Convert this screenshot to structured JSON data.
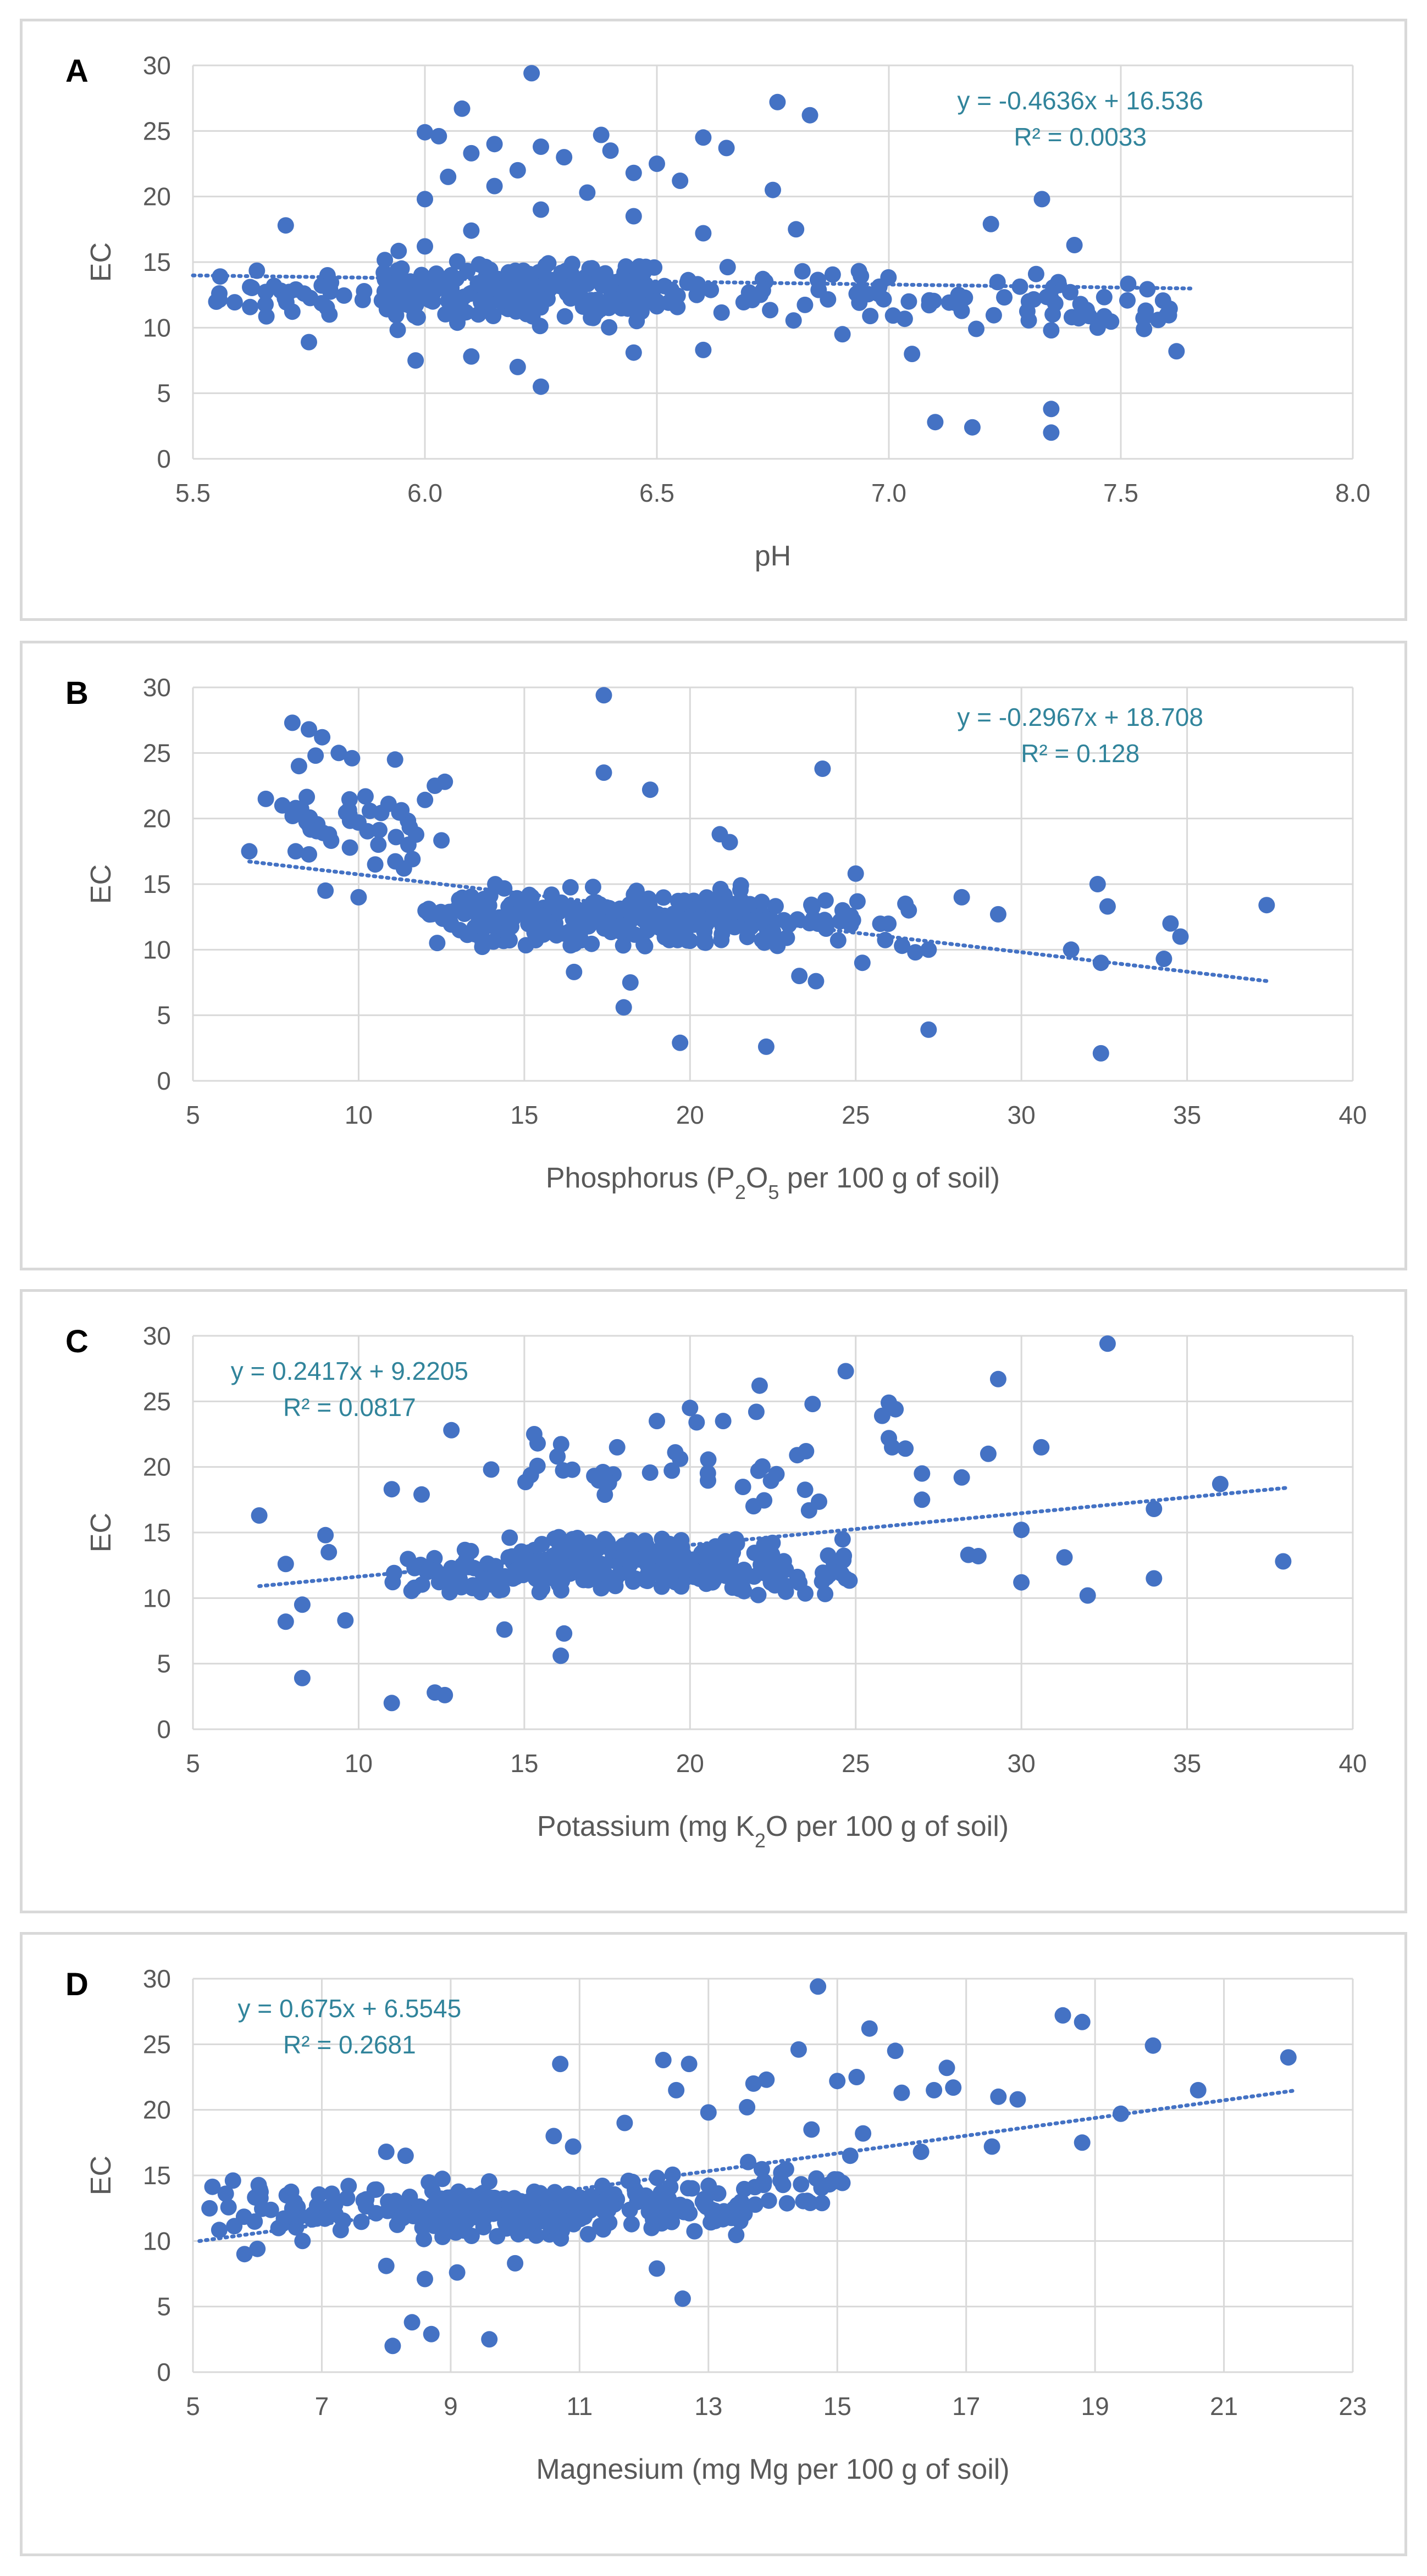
{
  "colors": {
    "marker": "#4472c4",
    "trend": "#4472c4",
    "equation": "#31849b",
    "grid": "#d9d9d9",
    "tick": "#595959",
    "border": "#d9d9d9"
  },
  "chart_data": [
    {
      "panel_label": "A",
      "type": "scatter",
      "xlabel": "pH",
      "xlabel_parts": [
        {
          "t": "pH"
        }
      ],
      "ylabel": "EC",
      "xlim": [
        5.5,
        8.0
      ],
      "ylim": [
        0,
        30
      ],
      "xticks": [
        5.5,
        6.0,
        6.5,
        7.0,
        7.5,
        8.0
      ],
      "xtick_labels": [
        "5.5",
        "6.0",
        "6.5",
        "7.0",
        "7.5",
        "8.0"
      ],
      "yticks": [
        0,
        5,
        10,
        15,
        20,
        25,
        30
      ],
      "ytick_labels": [
        "0",
        "5",
        "10",
        "15",
        "20",
        "25",
        "30"
      ],
      "equation": "y = -0.4636x + 16.536",
      "r2": "R² = 0.0033",
      "eq_side": "right",
      "trend": {
        "slope": -0.4636,
        "intercept": 16.536,
        "x0": 5.5,
        "x1": 7.65
      },
      "clusters": [
        {
          "x": [
            5.9,
            6.5
          ],
          "y": [
            9.5,
            16
          ],
          "n": 210,
          "seed": 11
        },
        {
          "x": [
            5.55,
            6.0
          ],
          "y": [
            10,
            15
          ],
          "n": 45,
          "seed": 12
        },
        {
          "x": [
            6.4,
            7.0
          ],
          "y": [
            10,
            15.5
          ],
          "n": 45,
          "seed": 13
        },
        {
          "x": [
            7.0,
            7.65
          ],
          "y": [
            9,
            15
          ],
          "n": 45,
          "seed": 14
        }
      ],
      "points": [
        [
          6.23,
          29.4
        ],
        [
          6.76,
          27.2
        ],
        [
          6.08,
          26.7
        ],
        [
          6.83,
          26.2
        ],
        [
          6.0,
          24.9
        ],
        [
          6.03,
          24.6
        ],
        [
          6.38,
          24.7
        ],
        [
          6.6,
          24.5
        ],
        [
          6.15,
          24.0
        ],
        [
          6.25,
          23.8
        ],
        [
          6.4,
          23.5
        ],
        [
          6.65,
          23.7
        ],
        [
          6.1,
          23.3
        ],
        [
          6.3,
          23.0
        ],
        [
          6.5,
          22.5
        ],
        [
          6.2,
          22.0
        ],
        [
          6.45,
          21.8
        ],
        [
          6.55,
          21.2
        ],
        [
          6.05,
          21.5
        ],
        [
          6.15,
          20.8
        ],
        [
          6.75,
          20.5
        ],
        [
          6.35,
          20.3
        ],
        [
          7.33,
          19.8
        ],
        [
          6.0,
          19.8
        ],
        [
          6.25,
          19.0
        ],
        [
          6.45,
          18.5
        ],
        [
          5.7,
          17.8
        ],
        [
          7.22,
          17.9
        ],
        [
          6.1,
          17.4
        ],
        [
          6.8,
          17.5
        ],
        [
          6.6,
          17.2
        ],
        [
          7.4,
          16.3
        ],
        [
          6.0,
          16.2
        ],
        [
          7.1,
          2.8
        ],
        [
          7.18,
          2.4
        ],
        [
          7.35,
          2.0
        ],
        [
          7.35,
          3.8
        ],
        [
          6.25,
          5.5
        ],
        [
          5.98,
          7.5
        ],
        [
          6.2,
          7.0
        ],
        [
          6.45,
          8.1
        ],
        [
          6.6,
          8.3
        ],
        [
          6.1,
          7.8
        ],
        [
          5.75,
          8.9
        ],
        [
          7.35,
          9.8
        ],
        [
          7.45,
          10.0
        ],
        [
          7.55,
          9.9
        ],
        [
          7.62,
          8.2
        ],
        [
          7.6,
          11.0
        ],
        [
          7.05,
          8.0
        ],
        [
          6.9,
          9.5
        ],
        [
          7.15,
          12.5
        ]
      ]
    },
    {
      "panel_label": "B",
      "type": "scatter",
      "xlabel": "Phosphorus (P2O5 per 100 g of soil)",
      "xlabel_parts": [
        {
          "t": "Phosphorus (P"
        },
        {
          "t": "2",
          "sub": true
        },
        {
          "t": "O"
        },
        {
          "t": "5",
          "sub": true
        },
        {
          "t": " per 100 g of soil)"
        }
      ],
      "ylabel": "EC",
      "xlim": [
        5,
        40
      ],
      "ylim": [
        0,
        30
      ],
      "xticks": [
        5,
        10,
        15,
        20,
        25,
        30,
        35,
        40
      ],
      "xtick_labels": [
        "5",
        "10",
        "15",
        "20",
        "25",
        "30",
        "35",
        "40"
      ],
      "yticks": [
        0,
        5,
        10,
        15,
        20,
        25,
        30
      ],
      "ytick_labels": [
        "0",
        "5",
        "10",
        "15",
        "20",
        "25",
        "30"
      ],
      "equation": "y = -0.2967x + 18.708",
      "r2": "R² = 0.128",
      "eq_side": "right",
      "trend": {
        "slope": -0.2967,
        "intercept": 18.708,
        "x0": 6.7,
        "x1": 37.5
      },
      "clusters": [
        {
          "x": [
            13.5,
            22
          ],
          "y": [
            9.5,
            15.5
          ],
          "n": 240,
          "seed": 21
        },
        {
          "x": [
            12,
            14
          ],
          "y": [
            10,
            15
          ],
          "n": 30,
          "seed": 22
        },
        {
          "x": [
            22,
            26
          ],
          "y": [
            9,
            15
          ],
          "n": 35,
          "seed": 23
        },
        {
          "x": [
            8,
            12.5
          ],
          "y": [
            15,
            24
          ],
          "n": 40,
          "seed": 24
        }
      ],
      "points": [
        [
          8.0,
          27.3
        ],
        [
          8.5,
          26.8
        ],
        [
          8.9,
          26.2
        ],
        [
          8.2,
          24.0
        ],
        [
          8.7,
          24.8
        ],
        [
          9.4,
          25.0
        ],
        [
          9.8,
          24.6
        ],
        [
          11.1,
          24.5
        ],
        [
          17.4,
          29.4
        ],
        [
          17.4,
          23.5
        ],
        [
          18.8,
          22.2
        ],
        [
          24.0,
          23.8
        ],
        [
          12.3,
          22.5
        ],
        [
          12.6,
          22.8
        ],
        [
          7.2,
          21.5
        ],
        [
          7.7,
          21.0
        ],
        [
          8.1,
          20.8
        ],
        [
          6.7,
          17.5
        ],
        [
          8.1,
          17.5
        ],
        [
          11.5,
          18.0
        ],
        [
          10.5,
          16.5
        ],
        [
          9.0,
          14.5
        ],
        [
          10.0,
          14.0
        ],
        [
          20.9,
          18.8
        ],
        [
          21.2,
          18.2
        ],
        [
          26.5,
          13.5
        ],
        [
          26.6,
          13.0
        ],
        [
          26.8,
          9.8
        ],
        [
          27.2,
          10.0
        ],
        [
          28.2,
          14.0
        ],
        [
          29.3,
          12.7
        ],
        [
          31.5,
          10.0
        ],
        [
          32.3,
          15.0
        ],
        [
          32.4,
          9.0
        ],
        [
          32.6,
          13.3
        ],
        [
          34.5,
          12.0
        ],
        [
          34.8,
          11.0
        ],
        [
          34.3,
          9.3
        ],
        [
          37.4,
          13.4
        ],
        [
          32.4,
          2.1
        ],
        [
          27.2,
          3.9
        ],
        [
          22.3,
          2.6
        ],
        [
          19.7,
          2.9
        ],
        [
          18.0,
          5.6
        ],
        [
          18.2,
          7.5
        ],
        [
          16.5,
          8.3
        ],
        [
          23.3,
          8.0
        ],
        [
          25.2,
          9.0
        ],
        [
          23.8,
          7.6
        ],
        [
          26.4,
          10.3
        ],
        [
          25.0,
          15.8
        ]
      ]
    },
    {
      "panel_label": "C",
      "type": "scatter",
      "xlabel": "Potassium (mg K2O per 100 g of soil)",
      "xlabel_parts": [
        {
          "t": "Potassium (mg K"
        },
        {
          "t": "2",
          "sub": true
        },
        {
          "t": "O per 100 g of soil)"
        }
      ],
      "ylabel": "EC",
      "xlim": [
        5,
        40
      ],
      "ylim": [
        0,
        30
      ],
      "xticks": [
        5,
        10,
        15,
        20,
        25,
        30,
        35,
        40
      ],
      "xtick_labels": [
        "5",
        "10",
        "15",
        "20",
        "25",
        "30",
        "35",
        "40"
      ],
      "yticks": [
        0,
        5,
        10,
        15,
        20,
        25,
        30
      ],
      "ytick_labels": [
        "0",
        "5",
        "10",
        "15",
        "20",
        "25",
        "30"
      ],
      "equation": "y = 0.2417x + 9.2205",
      "r2": "R² = 0.0817",
      "eq_side": "left",
      "trend": {
        "slope": 0.2417,
        "intercept": 9.2205,
        "x0": 7.0,
        "x1": 38.0
      },
      "clusters": [
        {
          "x": [
            14.5,
            21.5
          ],
          "y": [
            10,
            15.5
          ],
          "n": 240,
          "seed": 31
        },
        {
          "x": [
            11,
            14.5
          ],
          "y": [
            9,
            15
          ],
          "n": 45,
          "seed": 32
        },
        {
          "x": [
            21.5,
            25
          ],
          "y": [
            9,
            15.5
          ],
          "n": 45,
          "seed": 33
        },
        {
          "x": [
            15,
            24
          ],
          "y": [
            15.5,
            23
          ],
          "n": 30,
          "seed": 34
        }
      ],
      "points": [
        [
          32.6,
          29.4
        ],
        [
          24.7,
          27.3
        ],
        [
          29.3,
          26.7
        ],
        [
          22.1,
          26.2
        ],
        [
          26.0,
          24.9
        ],
        [
          26.2,
          24.4
        ],
        [
          25.8,
          23.9
        ],
        [
          22.0,
          24.2
        ],
        [
          23.7,
          24.8
        ],
        [
          20.0,
          24.5
        ],
        [
          19.0,
          23.5
        ],
        [
          20.2,
          23.4
        ],
        [
          21.0,
          23.5
        ],
        [
          12.8,
          22.8
        ],
        [
          15.3,
          22.5
        ],
        [
          15.4,
          21.8
        ],
        [
          17.8,
          21.5
        ],
        [
          26.0,
          22.2
        ],
        [
          26.1,
          21.5
        ],
        [
          26.5,
          21.4
        ],
        [
          23.5,
          21.2
        ],
        [
          30.6,
          21.5
        ],
        [
          29.0,
          21.0
        ],
        [
          16.0,
          20.8
        ],
        [
          14.0,
          19.8
        ],
        [
          27.0,
          19.5
        ],
        [
          28.2,
          19.2
        ],
        [
          36.0,
          18.7
        ],
        [
          34.0,
          16.8
        ],
        [
          11.0,
          18.3
        ],
        [
          11.9,
          17.9
        ],
        [
          7.0,
          16.3
        ],
        [
          27.0,
          17.5
        ],
        [
          28.4,
          13.3
        ],
        [
          28.7,
          13.2
        ],
        [
          30.0,
          11.2
        ],
        [
          30.0,
          15.2
        ],
        [
          31.3,
          13.1
        ],
        [
          32.0,
          10.2
        ],
        [
          34.0,
          11.5
        ],
        [
          37.9,
          12.8
        ],
        [
          8.3,
          3.9
        ],
        [
          11.0,
          2.0
        ],
        [
          12.3,
          2.8
        ],
        [
          12.6,
          2.6
        ],
        [
          16.1,
          5.6
        ],
        [
          16.2,
          7.3
        ],
        [
          14.4,
          7.6
        ],
        [
          7.8,
          8.2
        ],
        [
          8.3,
          9.5
        ],
        [
          9.6,
          8.3
        ],
        [
          7.8,
          12.6
        ],
        [
          9.0,
          14.8
        ],
        [
          9.1,
          13.5
        ]
      ]
    },
    {
      "panel_label": "D",
      "type": "scatter",
      "xlabel": "Magnesium (mg Mg per 100 g of soil)",
      "xlabel_parts": [
        {
          "t": "Magnesium (mg Mg per 100 g of soil)"
        }
      ],
      "ylabel": "EC",
      "xlim": [
        5,
        23
      ],
      "ylim": [
        0,
        30
      ],
      "xticks": [
        5,
        7,
        9,
        11,
        13,
        15,
        17,
        19,
        21,
        23
      ],
      "xtick_labels": [
        "5",
        "7",
        "9",
        "11",
        "13",
        "15",
        "17",
        "19",
        "21",
        "23"
      ],
      "yticks": [
        0,
        5,
        10,
        15,
        20,
        25,
        30
      ],
      "ytick_labels": [
        "0",
        "5",
        "10",
        "15",
        "20",
        "25",
        "30"
      ],
      "equation": "y = 0.675x + 6.5545",
      "r2": "R² = 0.2681",
      "eq_side": "left",
      "trend": {
        "slope": 0.675,
        "intercept": 6.5545,
        "x0": 5.1,
        "x1": 22.1
      },
      "clusters": [
        {
          "x": [
            8.2,
            11.2
          ],
          "y": [
            9.5,
            15
          ],
          "n": 170,
          "seed": 41
        },
        {
          "x": [
            5.2,
            8.2
          ],
          "y": [
            10,
            15
          ],
          "n": 60,
          "seed": 42
        },
        {
          "x": [
            11.2,
            13.6
          ],
          "y": [
            10,
            15.5
          ],
          "n": 80,
          "seed": 43
        },
        {
          "x": [
            13.4,
            15.2
          ],
          "y": [
            11.5,
            17
          ],
          "n": 25,
          "seed": 44
        }
      ],
      "points": [
        [
          14.7,
          29.4
        ],
        [
          18.5,
          27.2
        ],
        [
          18.8,
          26.7
        ],
        [
          15.5,
          26.2
        ],
        [
          19.9,
          24.9
        ],
        [
          15.9,
          24.5
        ],
        [
          14.4,
          24.6
        ],
        [
          22.0,
          24.0
        ],
        [
          12.3,
          23.8
        ],
        [
          12.7,
          23.5
        ],
        [
          10.7,
          23.5
        ],
        [
          16.7,
          23.2
        ],
        [
          15.0,
          22.2
        ],
        [
          15.3,
          22.5
        ],
        [
          13.9,
          22.3
        ],
        [
          13.7,
          22.0
        ],
        [
          12.5,
          21.5
        ],
        [
          16.5,
          21.5
        ],
        [
          16.0,
          21.3
        ],
        [
          16.8,
          21.7
        ],
        [
          17.8,
          20.8
        ],
        [
          17.5,
          21.0
        ],
        [
          20.6,
          21.5
        ],
        [
          13.6,
          20.2
        ],
        [
          13.0,
          19.8
        ],
        [
          19.4,
          19.7
        ],
        [
          11.7,
          19.0
        ],
        [
          17.4,
          17.2
        ],
        [
          18.8,
          17.5
        ],
        [
          16.3,
          16.8
        ],
        [
          15.4,
          18.2
        ],
        [
          14.6,
          18.5
        ],
        [
          15.2,
          16.5
        ],
        [
          10.6,
          18.0
        ],
        [
          10.9,
          17.2
        ],
        [
          8.0,
          16.8
        ],
        [
          8.3,
          16.5
        ],
        [
          8.1,
          2.0
        ],
        [
          8.7,
          2.9
        ],
        [
          9.6,
          2.5
        ],
        [
          8.4,
          3.8
        ],
        [
          12.6,
          5.6
        ],
        [
          8.6,
          7.1
        ],
        [
          9.1,
          7.6
        ],
        [
          8.0,
          8.1
        ],
        [
          12.2,
          7.9
        ],
        [
          10.0,
          8.3
        ],
        [
          5.8,
          9.0
        ],
        [
          6.0,
          9.4
        ],
        [
          6.7,
          10.0
        ]
      ]
    }
  ]
}
